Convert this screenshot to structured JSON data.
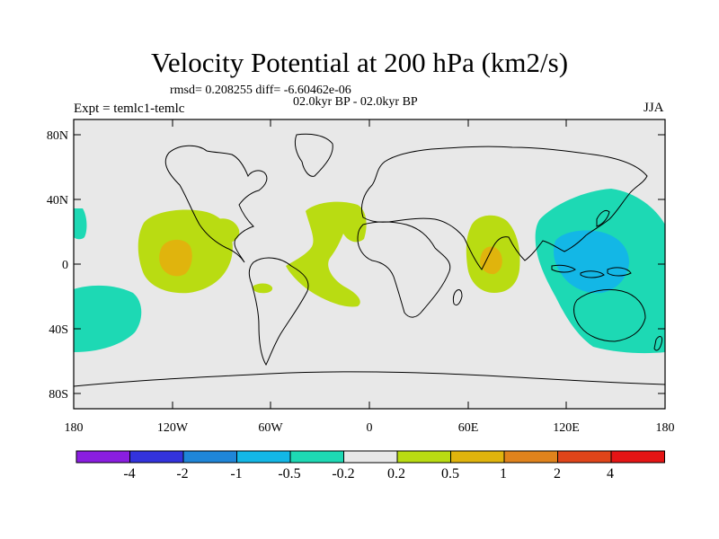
{
  "title": "Velocity Potential at 200 hPa (km2/s)",
  "stats": "rmsd= 0.208255  diff= -6.60462e-06",
  "subtitle": "02.0kyr BP - 02.0kyr BP",
  "experiment": "Expt = temlc1-temlc",
  "season": "JJA",
  "lat_labels": [
    "80N",
    "40N",
    "0",
    "40S",
    "80S"
  ],
  "lon_labels": [
    "180",
    "120W",
    "60W",
    "0",
    "60E",
    "120E",
    "180"
  ],
  "colorbar": {
    "labels": [
      "-4",
      "-2",
      "-1",
      "-0.5",
      "-0.2",
      "0.2",
      "0.5",
      "1",
      "2",
      "4"
    ],
    "colors": [
      "#8a1ee0",
      "#3333dd",
      "#1f86d8",
      "#13b7e6",
      "#1dd9b4",
      "#e8e8e8",
      "#b9dc12",
      "#e0b40d",
      "#e0831c",
      "#e0451a",
      "#e51515"
    ]
  },
  "colors": {
    "background": "#e8e8e8",
    "coast": "#000000"
  }
}
